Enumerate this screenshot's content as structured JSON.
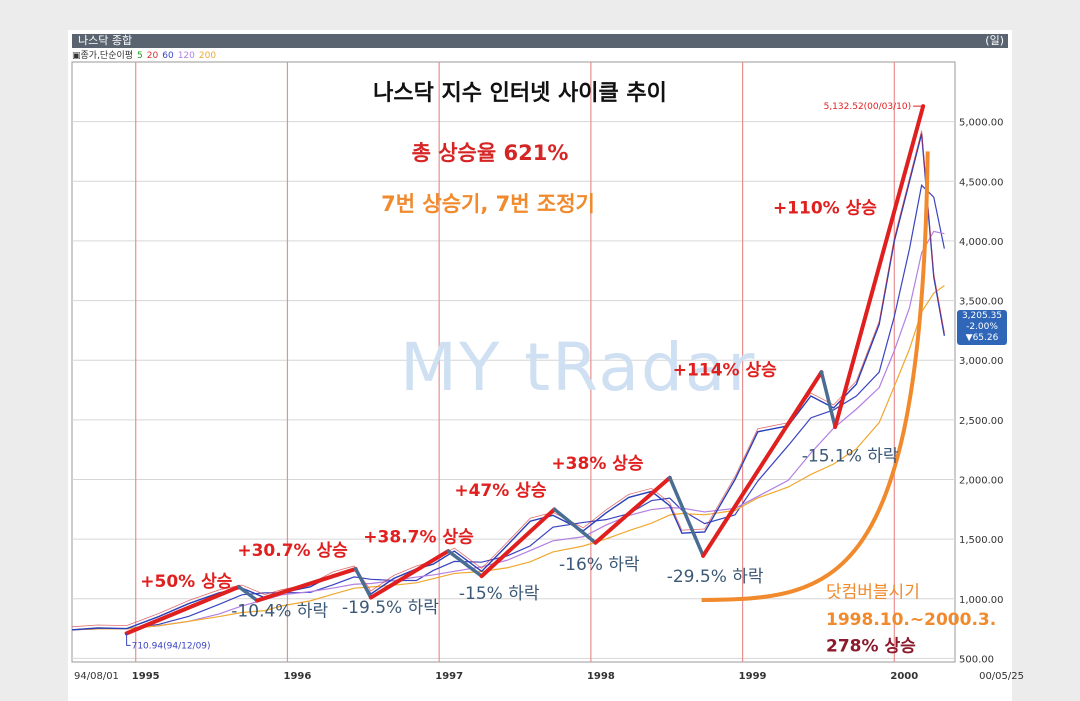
{
  "window": {
    "title": "나스닥 종합",
    "unit": "(일)",
    "legend": {
      "prefix": "▣종가,단순이평",
      "periods": [
        "5",
        "20",
        "60",
        "120",
        "200"
      ]
    }
  },
  "price_box": {
    "price": "3,205.35",
    "change_pct": "-2.00%",
    "change": "▼65.26"
  },
  "watermark": "MY tRadar",
  "colors": {
    "up_line": "#e01f1f",
    "down_line": "#4a6e93",
    "orange": "#f08a2c",
    "grid": "#d6d6d6",
    "vline": "#e89090",
    "candle_up": "#d43030",
    "candle_down": "#2a3fb8",
    "ma5": "#d43030",
    "ma20": "#c84e4e",
    "ma60": "#3a44c2",
    "ma120": "#b27fe3",
    "ma200": "#f0a830"
  },
  "chart_data": {
    "type": "line",
    "title": "나스닥 지수 인터넷 사이클 추이",
    "subtitle1": "총 상승율 621%",
    "subtitle2": "7번 상승기, 7번 조정기",
    "xlabel": "",
    "ylabel": "",
    "x_tick_labels": [
      "94/08/01",
      "1995",
      "1996",
      "1997",
      "1998",
      "1999",
      "2000",
      "00/05/25"
    ],
    "y_ticks": [
      500,
      1000,
      1500,
      2000,
      2500,
      3000,
      3500,
      4000,
      4500,
      5000
    ],
    "y_tick_labels": [
      "500.00",
      "1,000.00",
      "1,500.00",
      "2,000.00",
      "2,500.00",
      "3,000.00",
      "3,500.00",
      "4,000.00",
      "4,500.00",
      "5,000.00"
    ],
    "ylim": [
      470,
      5500
    ],
    "xlim": [
      1994.58,
      2000.4
    ],
    "series": [
      {
        "x": [
          1994.58,
          1994.75,
          1994.94,
          1995.15,
          1995.35,
          1995.55,
          1995.7,
          1995.85,
          1995.96,
          1996.15,
          1996.3,
          1996.44,
          1996.55,
          1996.7,
          1996.85,
          1996.96,
          1997.1,
          1997.28,
          1997.45,
          1997.6,
          1997.75,
          1997.95,
          1998.1,
          1998.25,
          1998.4,
          1998.52,
          1998.6,
          1998.75,
          1998.95,
          1999.1,
          1999.3,
          1999.45,
          1999.6,
          1999.75,
          1999.9,
          2000.0,
          2000.1,
          2000.18,
          2000.26,
          2000.33
        ],
        "values": [
          740,
          755,
          750,
          850,
          960,
          1050,
          1090,
          1010,
          1050,
          1100,
          1200,
          1250,
          1040,
          1170,
          1250,
          1290,
          1400,
          1230,
          1450,
          1650,
          1700,
          1570,
          1720,
          1850,
          1900,
          1780,
          1550,
          1560,
          2000,
          2400,
          2450,
          2700,
          2600,
          2800,
          3300,
          4000,
          4500,
          4900,
          3700,
          3205
        ]
      }
    ],
    "cycle_lines": [
      {
        "kind": "up",
        "x": [
          1994.94,
          1995.68
        ],
        "values": [
          710,
          1100
        ]
      },
      {
        "kind": "down",
        "x": [
          1995.68,
          1995.8
        ],
        "values": [
          1100,
          985
        ]
      },
      {
        "kind": "up",
        "x": [
          1995.8,
          1996.45
        ],
        "values": [
          985,
          1250
        ]
      },
      {
        "kind": "down",
        "x": [
          1996.45,
          1996.55
        ],
        "values": [
          1250,
          1010
        ]
      },
      {
        "kind": "up",
        "x": [
          1996.55,
          1997.06
        ],
        "values": [
          1010,
          1400
        ]
      },
      {
        "kind": "down",
        "x": [
          1997.06,
          1997.28
        ],
        "values": [
          1400,
          1190
        ]
      },
      {
        "kind": "up",
        "x": [
          1997.28,
          1997.76
        ],
        "values": [
          1190,
          1750
        ]
      },
      {
        "kind": "down",
        "x": [
          1997.76,
          1998.03
        ],
        "values": [
          1750,
          1470
        ]
      },
      {
        "kind": "up",
        "x": [
          1998.03,
          1998.52
        ],
        "values": [
          1470,
          2015
        ]
      },
      {
        "kind": "down",
        "x": [
          1998.52,
          1998.74
        ],
        "values": [
          2015,
          1360
        ]
      },
      {
        "kind": "up",
        "x": [
          1998.74,
          1999.52
        ],
        "values": [
          1360,
          2900
        ]
      },
      {
        "kind": "down",
        "x": [
          1999.52,
          1999.61
        ],
        "values": [
          2900,
          2440
        ]
      },
      {
        "kind": "up",
        "x": [
          1999.61,
          2000.19
        ],
        "values": [
          2440,
          5130
        ]
      }
    ],
    "annotations": {
      "up": [
        {
          "text": "+50% 상승",
          "x": 1995.03,
          "y": 1100
        },
        {
          "text": "+30.7% 상승",
          "x": 1995.67,
          "y": 1360
        },
        {
          "text": "+38.7% 상승",
          "x": 1996.5,
          "y": 1470
        },
        {
          "text": "+47% 상승",
          "x": 1997.1,
          "y": 1860
        },
        {
          "text": "+38% 상승",
          "x": 1997.74,
          "y": 2090
        },
        {
          "text": "+114% 상승",
          "x": 1998.54,
          "y": 2870
        },
        {
          "text": "+110% 상승",
          "x": 1999.2,
          "y": 4230
        }
      ],
      "down": [
        {
          "text": "-10.4% 하락",
          "x": 1995.63,
          "y": 850
        },
        {
          "text": "-19.5% 하락",
          "x": 1996.36,
          "y": 880
        },
        {
          "text": "-15% 하락",
          "x": 1997.13,
          "y": 1000
        },
        {
          "text": "-16% 하락",
          "x": 1997.79,
          "y": 1240
        },
        {
          "text": "-29.5% 하락",
          "x": 1998.5,
          "y": 1140
        },
        {
          "text": "-15.1% 하락",
          "x": 1999.39,
          "y": 2150
        }
      ],
      "bubble_lines": [
        {
          "text": "닷컴버블시기",
          "color": "#f08a2c",
          "y": 1010
        },
        {
          "text": "1998.10.~2000.3.",
          "color": "#f08a2c",
          "y": 780
        },
        {
          "text": "278% 상승",
          "color": "#8b1a2a",
          "y": 560
        }
      ],
      "peak_label": "5,132.52(00/03/10)",
      "trough_label": "710.94(94/12/09)"
    }
  }
}
